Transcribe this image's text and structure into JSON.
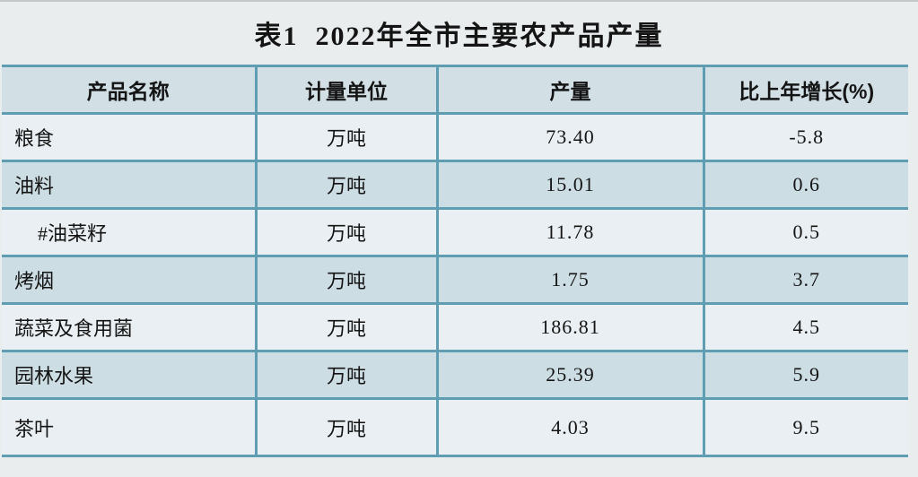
{
  "title": "表1  2022年全市主要农产品产量",
  "table": {
    "columns": {
      "product": "产品名称",
      "unit": "计量单位",
      "output": "产量",
      "growth": "比上年增长(%)"
    },
    "rows": [
      {
        "name": "粮食",
        "unit": "万吨",
        "output": "73.40",
        "growth": "-5.8"
      },
      {
        "name": "油料",
        "unit": "万吨",
        "output": "15.01",
        "growth": "0.6"
      },
      {
        "name": "#油菜籽",
        "unit": "万吨",
        "output": "11.78",
        "growth": "0.5"
      },
      {
        "name": "烤烟",
        "unit": "万吨",
        "output": "1.75",
        "growth": "3.7"
      },
      {
        "name": "蔬菜及食用菌",
        "unit": "万吨",
        "output": "186.81",
        "growth": "4.5"
      },
      {
        "name": "园林水果",
        "unit": "万吨",
        "output": "25.39",
        "growth": "5.9"
      },
      {
        "name": "茶叶",
        "unit": "万吨",
        "output": "4.03",
        "growth": "9.5"
      }
    ]
  },
  "colors": {
    "page-bg": "#eaedee",
    "border": "#5f9db3",
    "header-bg": "#d2e0e6",
    "row-light": "#e9eff2",
    "row-dark": "#cddde4",
    "text": "#141414"
  }
}
